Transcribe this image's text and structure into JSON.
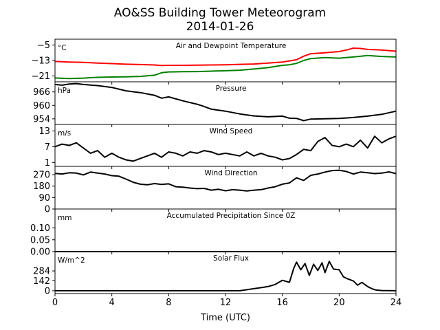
{
  "figure": {
    "title_line1": "AO&SS Building Tower Meteorogram",
    "title_line2": "2014-01-26",
    "xlabel": "Time (UTC)",
    "x_ticks": [
      "0",
      "4",
      "8",
      "12",
      "16",
      "20",
      "24"
    ]
  },
  "chart_data": [
    {
      "type": "line",
      "title": "Air and Dewpoint Temperature",
      "unit_label": "°C",
      "xlim": [
        0,
        24
      ],
      "ylim": [
        -24,
        -2
      ],
      "yticks": [
        -5,
        -13,
        -21
      ],
      "ytick_labels": [
        "−5",
        "−13",
        "−21"
      ],
      "series": [
        {
          "color": "#ff0000",
          "x": [
            0,
            1,
            2,
            3,
            4,
            5,
            6,
            7,
            7.5,
            8,
            9,
            10,
            11,
            12,
            13,
            14,
            15,
            16,
            16.5,
            17,
            17.5,
            18,
            19,
            20,
            20.5,
            21,
            21.5,
            22,
            23,
            24
          ],
          "y": [
            -13.5,
            -13.8,
            -14,
            -14.3,
            -14.6,
            -14.9,
            -15.1,
            -15.3,
            -15.6,
            -15.5,
            -15.5,
            -15.4,
            -15.3,
            -15.2,
            -15,
            -14.8,
            -14.3,
            -13.8,
            -13.2,
            -12.6,
            -10.8,
            -9.5,
            -9,
            -8.4,
            -7.6,
            -6.6,
            -6.8,
            -7.3,
            -7.6,
            -8.2
          ]
        },
        {
          "color": "#008000",
          "x": [
            0,
            1,
            2,
            3,
            4,
            5,
            6,
            7,
            7.5,
            8,
            9,
            10,
            11,
            12,
            13,
            14,
            15,
            16,
            16.5,
            17,
            17.5,
            18,
            19,
            20,
            21,
            22,
            23,
            24
          ],
          "y": [
            -22,
            -22.3,
            -22.1,
            -21.7,
            -21.5,
            -21.4,
            -21.2,
            -20.6,
            -19.3,
            -18.9,
            -18.8,
            -18.7,
            -18.5,
            -18.3,
            -18,
            -17.4,
            -16.7,
            -15.5,
            -15.2,
            -14.5,
            -13,
            -12,
            -11.5,
            -11.8,
            -11.2,
            -10.4,
            -10.9,
            -11.2
          ]
        }
      ]
    },
    {
      "type": "line",
      "title": "Pressure",
      "unit_label": "hPa",
      "xlim": [
        0,
        24
      ],
      "ylim": [
        951.5,
        970.5
      ],
      "yticks": [
        966,
        960,
        954
      ],
      "ytick_labels": [
        "966",
        "960",
        "954"
      ],
      "series": [
        {
          "color": "#000000",
          "x": [
            0,
            0.5,
            1,
            1.5,
            2,
            3,
            4,
            5,
            6,
            7,
            7.5,
            8,
            9,
            10,
            10.5,
            11,
            12,
            13,
            14,
            15,
            16,
            16.5,
            17,
            17.5,
            18,
            19,
            20,
            21,
            22,
            23,
            24
          ],
          "y": [
            969.3,
            969,
            969.5,
            969.7,
            969.3,
            968.8,
            968,
            966.5,
            965.7,
            964.5,
            963.2,
            963.8,
            962,
            960.5,
            959.5,
            958.3,
            957.4,
            956.2,
            955.3,
            954.9,
            955.2,
            954.3,
            954.2,
            953.2,
            953.9,
            954,
            954.2,
            954.6,
            955.2,
            956,
            957.4
          ]
        }
      ]
    },
    {
      "type": "line",
      "title": "Wind Speed",
      "unit_label": "m/s",
      "xlim": [
        0,
        24
      ],
      "ylim": [
        -0.5,
        15.5
      ],
      "yticks": [
        13,
        7,
        1
      ],
      "ytick_labels": [
        "13",
        "7",
        "1"
      ],
      "series": [
        {
          "color": "#000000",
          "x": [
            0,
            0.5,
            1,
            1.5,
            2,
            2.5,
            3,
            3.5,
            4,
            4.5,
            5,
            5.5,
            6,
            6.5,
            7,
            7.5,
            8,
            8.5,
            9,
            9.5,
            10,
            10.5,
            11,
            11.5,
            12,
            12.5,
            13,
            13.5,
            14,
            14.5,
            15,
            15.5,
            16,
            16.5,
            17,
            17.5,
            18,
            18.5,
            19,
            19.5,
            20,
            20.5,
            21,
            21.5,
            22,
            22.5,
            23,
            23.5,
            24
          ],
          "y": [
            7,
            8,
            7.5,
            8.5,
            6.5,
            4.5,
            5.5,
            3,
            4.5,
            3,
            2,
            1.5,
            2.5,
            3.5,
            4.5,
            3,
            5,
            4.5,
            3.5,
            5,
            4.5,
            5.5,
            5,
            4,
            4.5,
            4,
            3.5,
            5,
            3.5,
            4.5,
            3.5,
            3,
            2,
            2.5,
            4,
            6,
            5.5,
            9,
            10.5,
            7.5,
            7,
            8,
            7,
            9.5,
            6.5,
            11,
            8.5,
            10,
            11
          ]
        }
      ]
    },
    {
      "type": "line",
      "title": "Wind Direction",
      "unit_label": "",
      "xlim": [
        0,
        24
      ],
      "ylim": [
        0,
        335
      ],
      "yticks": [
        270,
        180,
        90,
        0
      ],
      "ytick_labels": [
        "270",
        "180",
        "90",
        "0"
      ],
      "series": [
        {
          "color": "#000000",
          "x": [
            0,
            0.5,
            1,
            1.5,
            2,
            2.5,
            3,
            3.5,
            4,
            4.5,
            5,
            5.5,
            6,
            6.5,
            7,
            7.5,
            8,
            8.5,
            9,
            9.5,
            10,
            10.5,
            11,
            11.5,
            12,
            12.5,
            13,
            13.5,
            14,
            14.5,
            15,
            15.5,
            16,
            16.5,
            17,
            17.5,
            18,
            18.5,
            19,
            19.5,
            20,
            20.5,
            21,
            21.5,
            22,
            22.5,
            23,
            23.5,
            24
          ],
          "y": [
            280,
            275,
            285,
            282,
            268,
            290,
            282,
            275,
            262,
            258,
            235,
            210,
            195,
            190,
            200,
            193,
            198,
            175,
            172,
            165,
            160,
            162,
            148,
            155,
            143,
            152,
            148,
            142,
            148,
            152,
            165,
            175,
            195,
            205,
            245,
            225,
            265,
            275,
            290,
            302,
            305,
            295,
            275,
            290,
            285,
            278,
            282,
            292,
            278
          ]
        }
      ]
    },
    {
      "type": "line",
      "title": "Accumulated Precipitation Since 0Z",
      "unit_label": "mm",
      "xlim": [
        0,
        24
      ],
      "ylim": [
        0,
        0.18
      ],
      "yticks": [
        0.1,
        0.05,
        0.0
      ],
      "ytick_labels": [
        "0.10",
        "0.05",
        "0.00"
      ],
      "series": [
        {
          "color": "#000000",
          "x": [
            0,
            24
          ],
          "y": [
            0,
            0
          ]
        }
      ]
    },
    {
      "type": "line",
      "title": "Solar Flux",
      "unit_label": "W/m^2",
      "xlim": [
        0,
        24
      ],
      "ylim": [
        -40,
        560
      ],
      "yticks": [
        284,
        142,
        0
      ],
      "ytick_labels": [
        "284",
        "142",
        "0"
      ],
      "series": [
        {
          "color": "#000000",
          "x": [
            0,
            13,
            13.5,
            14,
            14.5,
            15,
            15.5,
            16,
            16.5,
            16.8,
            17,
            17.3,
            17.6,
            17.9,
            18.2,
            18.5,
            18.8,
            19,
            19.3,
            19.6,
            20,
            20.3,
            20.6,
            21,
            21.3,
            21.6,
            22,
            22.3,
            22.6,
            23,
            24
          ],
          "y": [
            0,
            0,
            15,
            30,
            45,
            60,
            90,
            150,
            120,
            320,
            410,
            300,
            390,
            220,
            380,
            290,
            400,
            260,
            420,
            310,
            300,
            200,
            170,
            140,
            80,
            120,
            60,
            30,
            10,
            3,
            0
          ]
        }
      ]
    }
  ]
}
